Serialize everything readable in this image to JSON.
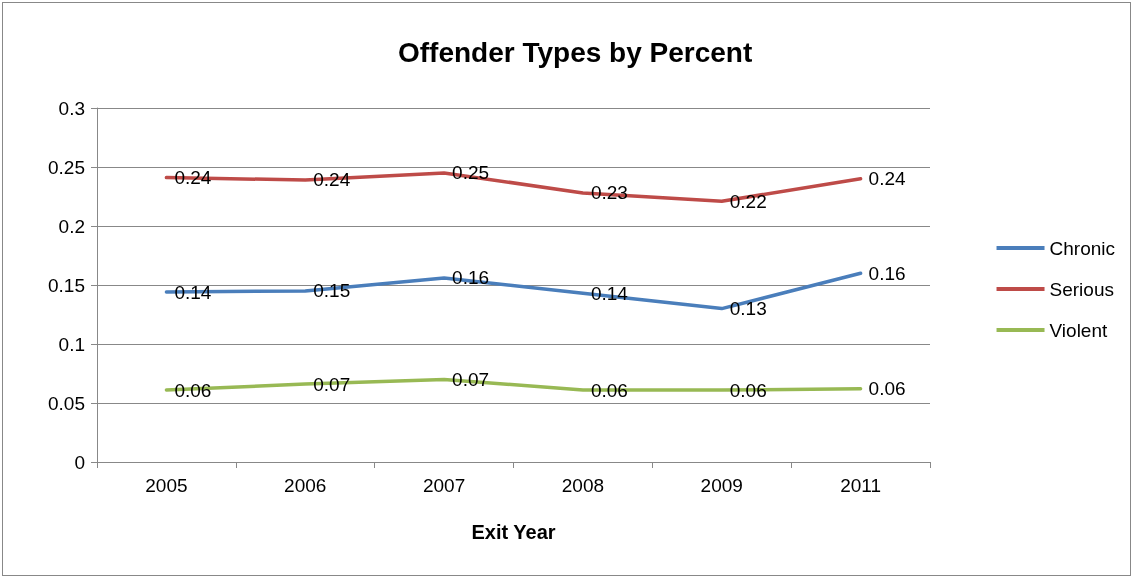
{
  "chart_data": {
    "type": "line",
    "title": "Offender Types by Percent",
    "xlabel": "Exit Year",
    "categories": [
      "2005",
      "2006",
      "2007",
      "2008",
      "2009",
      "2011"
    ],
    "series": [
      {
        "name": "Chronic",
        "color": "#4a7ebb",
        "values": [
          0.144,
          0.145,
          0.156,
          0.143,
          0.13,
          0.16
        ],
        "value_labels": [
          "0.14",
          "0.15",
          "0.16",
          "0.14",
          "0.13",
          "0.16"
        ]
      },
      {
        "name": "Serious",
        "color": "#be4b48",
        "values": [
          0.241,
          0.239,
          0.245,
          0.228,
          0.221,
          0.24
        ],
        "value_labels": [
          "0.24",
          "0.24",
          "0.25",
          "0.23",
          "0.22",
          "0.24"
        ]
      },
      {
        "name": "Violent",
        "color": "#98b954",
        "values": [
          0.061,
          0.066,
          0.07,
          0.061,
          0.061,
          0.062
        ],
        "value_labels": [
          "0.06",
          "0.07",
          "0.07",
          "0.06",
          "0.06",
          "0.06"
        ]
      }
    ],
    "ylim": [
      0,
      0.3
    ],
    "yticks": [
      0,
      0.05,
      0.1,
      0.15,
      0.2,
      0.25,
      0.3
    ],
    "grid": "y",
    "legend": "right",
    "marker": "none",
    "line_style": "solid"
  }
}
